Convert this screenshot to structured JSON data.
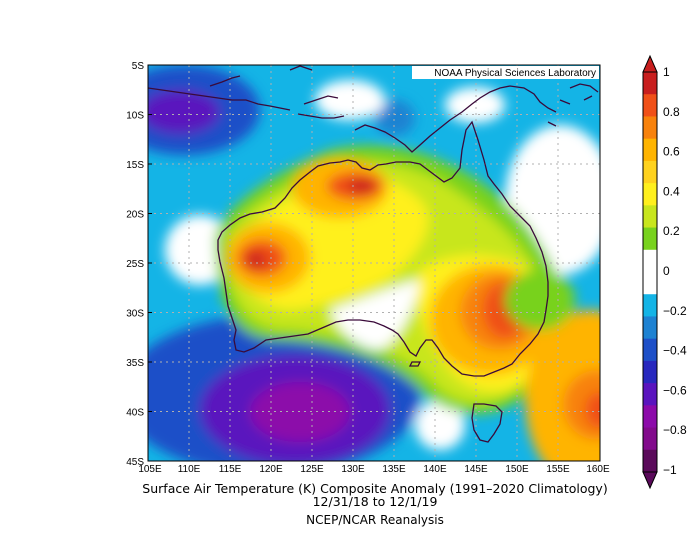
{
  "credit": "NOAA Physical Sciences Laboratory",
  "title_line1": "Surface Air Temperature (K) Composite Anomaly (1991–2020 Climatology)",
  "title_line2": "12/31/18  to 12/1/19",
  "title_line3": "NCEP/NCAR Reanalysis",
  "lat_labels": [
    "5S",
    "10S",
    "15S",
    "20S",
    "25S",
    "30S",
    "35S",
    "40S",
    "45S"
  ],
  "lon_labels": [
    "105E",
    "110E",
    "115E",
    "120E",
    "125E",
    "130E",
    "135E",
    "140E",
    "145E",
    "150E",
    "155E",
    "160E"
  ],
  "colorbar": {
    "labels": [
      "1",
      "0.8",
      "0.6",
      "0.4",
      "0.2",
      "0",
      "−0.2",
      "−0.4",
      "−0.6",
      "−0.8",
      "−1"
    ],
    "colors_top_to_bottom": [
      "#c81e1e",
      "#f05018",
      "#f8820c",
      "#ffb400",
      "#ffd21e",
      "#fff01e",
      "#c8e61e",
      "#78d21e",
      "#ffffff",
      "#ffffff",
      "#14b4e6",
      "#1e82d2",
      "#1e50c8",
      "#2828be",
      "#5a14be",
      "#8c0aaa",
      "#820a8c",
      "#5a0a5a"
    ]
  },
  "chart_data": {
    "type": "heatmap",
    "variable": "Surface Air Temperature (K) Composite Anomaly",
    "xlim": [
      105,
      160
    ],
    "ylim": [
      -45,
      -5
    ],
    "color_range": [
      -1,
      1
    ],
    "anomaly_centers": [
      {
        "lon": 130.5,
        "lat": -17.5,
        "value": 0.9
      },
      {
        "lon": 119.5,
        "lat": -25,
        "value": 0.9
      },
      {
        "lon": 150,
        "lat": -29.5,
        "value": 0.95
      },
      {
        "lon": 159,
        "lat": -40,
        "value": 0.8
      },
      {
        "lon": 123,
        "lat": -40,
        "value": -0.7
      },
      {
        "lon": 107,
        "lat": -10,
        "value": -0.55
      }
    ]
  }
}
